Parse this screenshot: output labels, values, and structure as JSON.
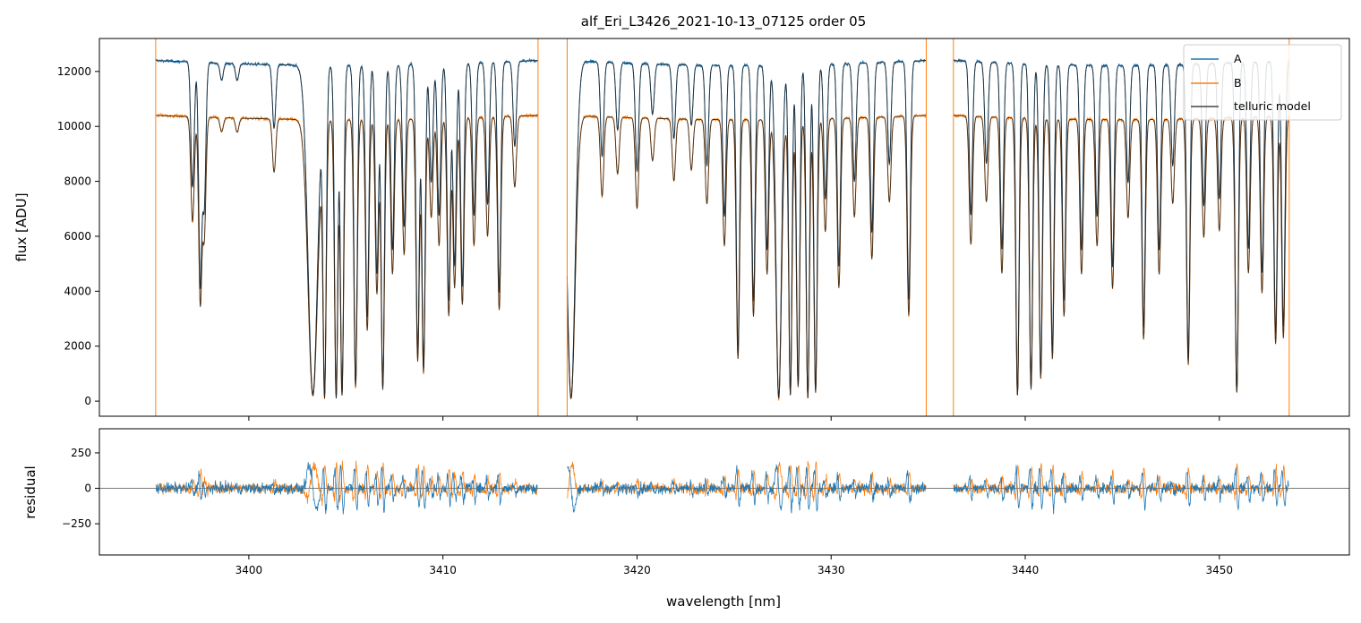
{
  "figure": {
    "title": "alf_Eri_L3426_2021-10-13_07125  order 05"
  },
  "chart_data": [
    {
      "type": "line",
      "title": "alf_Eri_L3426_2021-10-13_07125  order 05",
      "xlabel": "",
      "ylabel": "flux [ADU]",
      "xlim": [
        3392.3,
        3456.7
      ],
      "ylim": [
        -550,
        13200
      ],
      "xticks": [
        3400,
        3410,
        3420,
        3430,
        3440,
        3450
      ],
      "yticks": [
        0,
        2000,
        4000,
        6000,
        8000,
        10000,
        12000
      ],
      "ytick_labels": [
        "0",
        "2000",
        "4000",
        "6000",
        "8000",
        "10000",
        "12000"
      ],
      "grid": false,
      "legend": "top-right",
      "segments": [
        [
          3395.2,
          3414.9
        ],
        [
          3416.4,
          3434.9
        ],
        [
          3436.3,
          3453.6
        ]
      ],
      "series": [
        {
          "name": "A",
          "color": "#1f77b4",
          "continuum": 12400
        },
        {
          "name": "B",
          "color": "#ff7f0e",
          "continuum": 10400
        },
        {
          "name": "telluric model",
          "color": "#222222"
        }
      ],
      "absorption_lines": [
        {
          "x": 3397.1,
          "depth": 0.37
        },
        {
          "x": 3397.5,
          "depth": 0.66
        },
        {
          "x": 3397.7,
          "depth": 0.42
        },
        {
          "x": 3398.6,
          "depth": 0.05
        },
        {
          "x": 3399.4,
          "depth": 0.05
        },
        {
          "x": 3401.3,
          "depth": 0.19
        },
        {
          "x": 3403.3,
          "depth": 0.98,
          "width": 0.35
        },
        {
          "x": 3403.9,
          "depth": 0.99
        },
        {
          "x": 3404.5,
          "depth": 0.99
        },
        {
          "x": 3404.8,
          "depth": 0.98
        },
        {
          "x": 3405.5,
          "depth": 0.95
        },
        {
          "x": 3406.1,
          "depth": 0.75
        },
        {
          "x": 3406.6,
          "depth": 0.62
        },
        {
          "x": 3406.9,
          "depth": 0.96
        },
        {
          "x": 3407.4,
          "depth": 0.55
        },
        {
          "x": 3408.0,
          "depth": 0.48
        },
        {
          "x": 3408.7,
          "depth": 0.86
        },
        {
          "x": 3409.0,
          "depth": 0.9
        },
        {
          "x": 3409.4,
          "depth": 0.35
        },
        {
          "x": 3409.8,
          "depth": 0.45
        },
        {
          "x": 3410.3,
          "depth": 0.7
        },
        {
          "x": 3410.6,
          "depth": 0.6
        },
        {
          "x": 3411.0,
          "depth": 0.66
        },
        {
          "x": 3411.6,
          "depth": 0.45
        },
        {
          "x": 3412.3,
          "depth": 0.42
        },
        {
          "x": 3412.9,
          "depth": 0.68
        },
        {
          "x": 3413.7,
          "depth": 0.25
        },
        {
          "x": 3416.6,
          "depth": 0.99,
          "width": 0.3
        },
        {
          "x": 3418.2,
          "depth": 0.28
        },
        {
          "x": 3419.0,
          "depth": 0.2
        },
        {
          "x": 3420.0,
          "depth": 0.32
        },
        {
          "x": 3420.8,
          "depth": 0.15
        },
        {
          "x": 3421.9,
          "depth": 0.22
        },
        {
          "x": 3422.8,
          "depth": 0.18
        },
        {
          "x": 3423.6,
          "depth": 0.3
        },
        {
          "x": 3424.5,
          "depth": 0.45
        },
        {
          "x": 3425.2,
          "depth": 0.85
        },
        {
          "x": 3426.0,
          "depth": 0.7
        },
        {
          "x": 3426.7,
          "depth": 0.55
        },
        {
          "x": 3427.3,
          "depth": 0.99,
          "width": 0.2
        },
        {
          "x": 3427.9,
          "depth": 0.98
        },
        {
          "x": 3428.3,
          "depth": 0.95
        },
        {
          "x": 3428.8,
          "depth": 0.99
        },
        {
          "x": 3429.2,
          "depth": 0.97
        },
        {
          "x": 3429.7,
          "depth": 0.4
        },
        {
          "x": 3430.4,
          "depth": 0.6
        },
        {
          "x": 3431.2,
          "depth": 0.35
        },
        {
          "x": 3432.1,
          "depth": 0.5
        },
        {
          "x": 3433.0,
          "depth": 0.3
        },
        {
          "x": 3434.0,
          "depth": 0.7
        },
        {
          "x": 3437.2,
          "depth": 0.45
        },
        {
          "x": 3438.0,
          "depth": 0.3
        },
        {
          "x": 3438.8,
          "depth": 0.55
        },
        {
          "x": 3439.6,
          "depth": 0.98
        },
        {
          "x": 3440.3,
          "depth": 0.96
        },
        {
          "x": 3440.8,
          "depth": 0.92
        },
        {
          "x": 3441.4,
          "depth": 0.85
        },
        {
          "x": 3442.0,
          "depth": 0.7
        },
        {
          "x": 3442.9,
          "depth": 0.55
        },
        {
          "x": 3443.7,
          "depth": 0.45
        },
        {
          "x": 3444.5,
          "depth": 0.6
        },
        {
          "x": 3445.3,
          "depth": 0.35
        },
        {
          "x": 3446.1,
          "depth": 0.78
        },
        {
          "x": 3446.9,
          "depth": 0.55
        },
        {
          "x": 3447.6,
          "depth": 0.3
        },
        {
          "x": 3448.4,
          "depth": 0.87
        },
        {
          "x": 3449.2,
          "depth": 0.42
        },
        {
          "x": 3450.0,
          "depth": 0.4
        },
        {
          "x": 3450.9,
          "depth": 0.97
        },
        {
          "x": 3451.5,
          "depth": 0.55
        },
        {
          "x": 3452.2,
          "depth": 0.62
        },
        {
          "x": 3452.9,
          "depth": 0.8
        },
        {
          "x": 3453.3,
          "depth": 0.78
        }
      ]
    },
    {
      "type": "line",
      "title": "",
      "xlabel": "wavelength [nm]",
      "ylabel": "residual",
      "xlim": [
        3392.3,
        3456.7
      ],
      "ylim": [
        -470,
        420
      ],
      "xticks": [
        3400,
        3410,
        3420,
        3430,
        3440,
        3450
      ],
      "xtick_labels": [
        "3400",
        "3410",
        "3420",
        "3430",
        "3440",
        "3450"
      ],
      "yticks": [
        -250,
        0,
        250
      ],
      "ytick_labels": [
        "−250",
        "0",
        "250"
      ],
      "grid": false,
      "reference_line": 0,
      "series": [
        {
          "name": "A",
          "color": "#1f77b4"
        },
        {
          "name": "B",
          "color": "#ff7f0e"
        }
      ]
    }
  ]
}
